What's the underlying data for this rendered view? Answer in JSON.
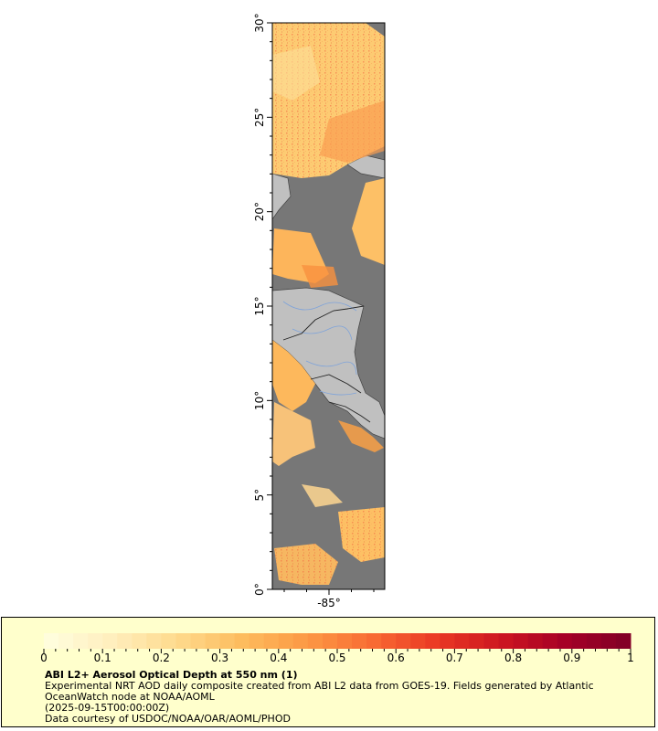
{
  "map": {
    "lat_labels": [
      "30°",
      "25°",
      "20°",
      "15°",
      "10°",
      "5°",
      "0°"
    ],
    "lat_values": [
      30,
      25,
      20,
      15,
      10,
      5,
      0
    ],
    "lon_labels": [
      "-85°"
    ],
    "lon_values": [
      -85
    ],
    "lat_range": [
      0,
      30
    ],
    "colors": {
      "ocean": "#777777",
      "land": "#c0c0c0",
      "coast": "#444444",
      "rivers": "#7fa3d9",
      "borders": "#222222"
    }
  },
  "legend": {
    "title": "ABI L2+ Aerosol Optical Depth at 550 nm (1)",
    "line1": "Experimental NRT AOD daily composite created from ABI L2 data from GOES-19. Fields generated by Atlantic",
    "line2": "OceanWatch node at NOAA/AOML",
    "line3": "(2025-09-15T00:00:00Z)",
    "line4": "Data courtesy of USDOC/NOAA/OAR/AOML/PHOD"
  },
  "colorbar": {
    "tick_labels": [
      "0",
      "0.1",
      "0.2",
      "0.3",
      "0.4",
      "0.5",
      "0.6",
      "0.7",
      "0.8",
      "0.9",
      "1"
    ],
    "range": [
      0,
      1
    ],
    "colors": [
      "#ffffe0",
      "#ffefbf",
      "#fedb8f",
      "#fdbd5f",
      "#fc9a45",
      "#f96d34",
      "#ea3a24",
      "#cd1620",
      "#a50026",
      "#800026"
    ]
  }
}
